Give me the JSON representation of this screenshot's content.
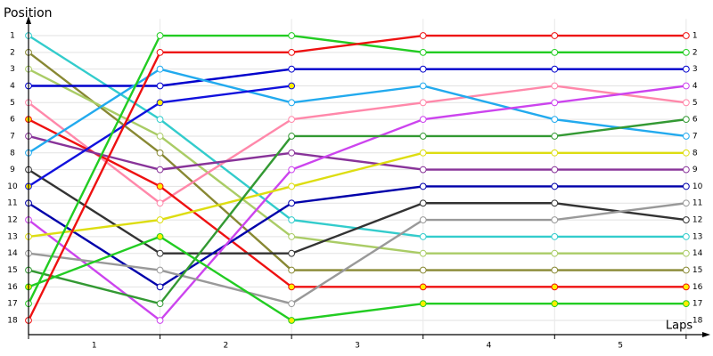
{
  "chart_data": {
    "type": "lap",
    "y_label": "Position",
    "x_label": "Laps",
    "x": [
      0,
      1,
      2,
      3,
      4,
      5
    ],
    "xlim": [
      0,
      5.15
    ],
    "xticks": [
      {
        "value": 0.5,
        "label": "1"
      },
      {
        "value": 1.5,
        "label": "2"
      },
      {
        "value": 2.5,
        "label": "3"
      },
      {
        "value": 3.5,
        "label": "4"
      },
      {
        "value": 4.5,
        "label": "5"
      }
    ],
    "ylim": [
      18.85,
      0
    ],
    "yticks": [
      1,
      2,
      3,
      4,
      5,
      6,
      7,
      8,
      9,
      10,
      11,
      12,
      13,
      14,
      15,
      16,
      17,
      18
    ],
    "grid": true,
    "series": [
      {
        "color": "#33cccc",
        "marker_color": "#ffffff",
        "values": [
          1,
          6,
          12,
          13,
          13,
          13
        ]
      },
      {
        "color": "#888833",
        "marker_color": "#ffffff",
        "values": [
          2,
          8,
          15,
          15,
          15,
          15
        ]
      },
      {
        "color": "#aacc66",
        "marker_color": "#ffffff",
        "values": [
          3,
          7,
          13,
          14,
          14,
          14
        ]
      },
      {
        "color": "#0000cc",
        "marker_color": "#ffffff",
        "values": [
          4,
          4,
          3,
          3,
          3,
          3
        ]
      },
      {
        "color": "#ff88aa",
        "marker_color": "#ffffff",
        "values": [
          5,
          11,
          6,
          5,
          4,
          5
        ]
      },
      {
        "color": "#ee1111",
        "marker_color": "#ffee00",
        "values": [
          6,
          10,
          16,
          16,
          16,
          16
        ]
      },
      {
        "color": "#883399",
        "marker_color": "#ffffff",
        "values": [
          7,
          9,
          8,
          9,
          9,
          9
        ]
      },
      {
        "color": "#22aaee",
        "marker_color": "#ffffff",
        "values": [
          8,
          3,
          5,
          4,
          6,
          7
        ]
      },
      {
        "color": "#333333",
        "marker_color": "#ffffff",
        "values": [
          9,
          14,
          14,
          11,
          11,
          12
        ]
      },
      {
        "color": "#1111dd",
        "marker_color": "#ffee00",
        "values": [
          10,
          5,
          4,
          null,
          null,
          null
        ]
      },
      {
        "color": "#0000aa",
        "marker_color": "#ffffff",
        "values": [
          11,
          16,
          11,
          10,
          10,
          10
        ]
      },
      {
        "color": "#cc44ee",
        "marker_color": "#ffffff",
        "values": [
          12,
          18,
          9,
          6,
          5,
          4
        ]
      },
      {
        "color": "#dddd11",
        "marker_color": "#ffffff",
        "values": [
          13,
          12,
          10,
          8,
          8,
          8
        ]
      },
      {
        "color": "#999999",
        "marker_color": "#ffffff",
        "values": [
          14,
          15,
          17,
          12,
          12,
          11
        ]
      },
      {
        "color": "#339933",
        "marker_color": "#ffffff",
        "values": [
          15,
          17,
          7,
          7,
          7,
          6
        ]
      },
      {
        "color": "#22cc22",
        "marker_color": "#ffee00",
        "values": [
          16,
          13,
          18,
          17,
          17,
          17
        ]
      },
      {
        "color": "#22cc22",
        "marker_color": "#ffffff",
        "values": [
          17,
          1,
          1,
          2,
          2,
          2
        ]
      },
      {
        "color": "#ee1111",
        "marker_color": "#ffffff",
        "values": [
          18,
          2,
          2,
          1,
          1,
          1
        ]
      }
    ]
  }
}
